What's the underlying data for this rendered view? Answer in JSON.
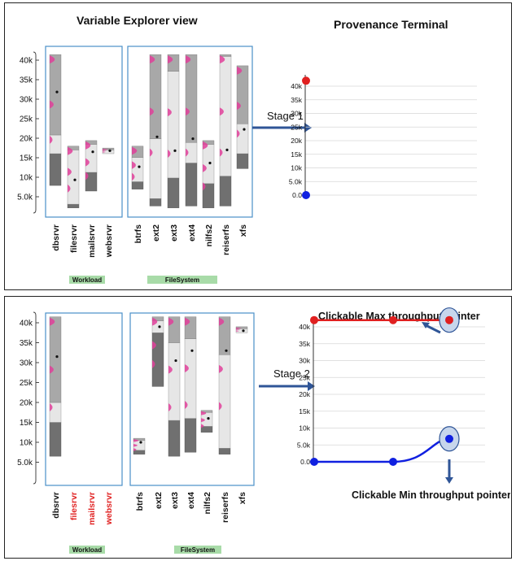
{
  "panel1": {
    "title_left": "Variable Explorer view",
    "title_right": "Provenance Terminal",
    "stage_label": "Stage 1",
    "y_ticks": [
      "40k",
      "35k",
      "30k",
      "25k",
      "20k",
      "15k",
      "10k",
      "5.0k"
    ],
    "workload_label": "Workload",
    "filesystem_label": "FileSystem",
    "workload_items": [
      "dbsrvr",
      "filesrvr",
      "mailsrvr",
      "websrvr"
    ],
    "filesystem_items": [
      "btrfs",
      "ext2",
      "ext3",
      "ext4",
      "nilfs2",
      "reiserfs",
      "xfs"
    ],
    "terminal_ticks": [
      "40k",
      "35k",
      "30k",
      "25k",
      "20k",
      "15k",
      "10k",
      "5.0k",
      "0.0"
    ]
  },
  "panel2": {
    "stage_label": "Stage 2",
    "y_ticks": [
      "40k",
      "35k",
      "30k",
      "25k",
      "20k",
      "15k",
      "10k",
      "5.0k"
    ],
    "workload_label": "Workload",
    "filesystem_label": "FileSystem",
    "workload_items": [
      "dbsrvr",
      "filesrvr",
      "mailsrvr",
      "websrvr"
    ],
    "filesystem_items": [
      "btrfs",
      "ext2",
      "ext3",
      "ext4",
      "nilfs2",
      "reiserfs",
      "xfs"
    ],
    "terminal_ticks": [
      "40k",
      "35k",
      "30k",
      "25k",
      "20k",
      "15k",
      "10k",
      "5.0k",
      "0.0"
    ],
    "max_callout": "Clickable Max throughput pointer",
    "min_callout": "Clickable Min throughput pointer"
  },
  "colors": {
    "dark": "#707070",
    "mid": "#a8a8a8",
    "light": "#e6e6e6",
    "pink": "#e0409a",
    "box_border": "#4a90c8",
    "group_bg": "#a8dba8",
    "max_red": "#e02020",
    "min_blue": "#1020e0",
    "arrow": "#2f5597",
    "deselected": "#e02020"
  },
  "chart_data": [
    {
      "type": "box",
      "title": "Variable Explorer view",
      "stage": "Stage 1",
      "ylim": [
        0,
        42000
      ],
      "yticks": [
        5000,
        10000,
        15000,
        20000,
        25000,
        30000,
        35000,
        40000
      ],
      "groups": [
        {
          "name": "Workload",
          "series": [
            {
              "name": "dbsrvr",
              "min": 6500,
              "q1": 15000,
              "q3": 20000,
              "max": 41500,
              "mean": 31500,
              "selected": true
            },
            {
              "name": "filesrvr",
              "min": 500,
              "q1": 1500,
              "q3": 16000,
              "max": 17000,
              "mean": 8000,
              "selected": true
            },
            {
              "name": "mailsrvr",
              "min": 5000,
              "q1": 10000,
              "q3": 17500,
              "max": 18500,
              "mean": 15500,
              "selected": true
            },
            {
              "name": "websrvr",
              "min": 15000,
              "q1": 15000,
              "q3": 16000,
              "max": 16500,
              "mean": 15800,
              "selected": true
            }
          ]
        },
        {
          "name": "FileSystem",
          "series": [
            {
              "name": "btrfs",
              "min": 5500,
              "q1": 7500,
              "q3": 14000,
              "max": 17000,
              "mean": 11500,
              "selected": true
            },
            {
              "name": "ext2",
              "min": 1000,
              "q1": 3000,
              "q3": 19000,
              "max": 41500,
              "mean": 19500,
              "selected": true
            },
            {
              "name": "ext3",
              "min": 500,
              "q1": 8500,
              "q3": 37000,
              "max": 41500,
              "mean": 15800,
              "selected": true
            },
            {
              "name": "ext4",
              "min": 1000,
              "q1": 12500,
              "q3": 18000,
              "max": 41500,
              "mean": 19000,
              "selected": true
            },
            {
              "name": "nilfs2",
              "min": 500,
              "q1": 7000,
              "q3": 17500,
              "max": 18500,
              "mean": 12500,
              "selected": true
            },
            {
              "name": "reiserfs",
              "min": 1000,
              "q1": 9000,
              "q3": 41000,
              "max": 41500,
              "mean": 16000,
              "selected": true
            },
            {
              "name": "xfs",
              "min": 11000,
              "q1": 15000,
              "q3": 23000,
              "max": 38500,
              "mean": 21500,
              "selected": true
            }
          ]
        }
      ]
    },
    {
      "type": "line",
      "title": "Provenance Terminal",
      "stage": "Stage 1",
      "ylim": [
        0,
        40000
      ],
      "yticks": [
        0,
        5000,
        10000,
        15000,
        20000,
        25000,
        30000,
        35000,
        40000
      ],
      "series": [
        {
          "name": "max",
          "values": [
            42000
          ]
        },
        {
          "name": "min",
          "values": [
            0
          ]
        }
      ]
    },
    {
      "type": "box",
      "stage": "Stage 2",
      "ylim": [
        0,
        42000
      ],
      "yticks": [
        5000,
        10000,
        15000,
        20000,
        25000,
        30000,
        35000,
        40000
      ],
      "groups": [
        {
          "name": "Workload",
          "series": [
            {
              "name": "dbsrvr",
              "min": 6500,
              "q1": 15000,
              "q3": 20000,
              "max": 41500,
              "mean": 31500,
              "selected": true
            },
            {
              "name": "filesrvr",
              "selected": false
            },
            {
              "name": "mailsrvr",
              "selected": false
            },
            {
              "name": "websrvr",
              "selected": false
            }
          ]
        },
        {
          "name": "FileSystem",
          "series": [
            {
              "name": "btrfs",
              "min": 7000,
              "q1": 8000,
              "q3": 10500,
              "max": 11000,
              "mean": 10000,
              "selected": true
            },
            {
              "name": "ext2",
              "min": 24000,
              "q1": 37500,
              "q3": 40500,
              "max": 41500,
              "mean": 39000,
              "selected": true
            },
            {
              "name": "ext3",
              "min": 6500,
              "q1": 15500,
              "q3": 35000,
              "max": 41500,
              "mean": 30500,
              "selected": true
            },
            {
              "name": "ext4",
              "min": 7500,
              "q1": 16000,
              "q3": 36000,
              "max": 41500,
              "mean": 33000,
              "selected": true
            },
            {
              "name": "nilfs2",
              "min": 12500,
              "q1": 14000,
              "q3": 17500,
              "max": 18000,
              "mean": 16000,
              "selected": true
            },
            {
              "name": "reiserfs",
              "min": 7000,
              "q1": 8500,
              "q3": 32000,
              "max": 41500,
              "mean": 33000,
              "selected": true
            },
            {
              "name": "xfs",
              "min": 37500,
              "q1": 37500,
              "q3": 38500,
              "max": 39000,
              "mean": 38000,
              "selected": true
            }
          ]
        }
      ]
    },
    {
      "type": "line",
      "stage": "Stage 2",
      "ylim": [
        0,
        40000
      ],
      "yticks": [
        0,
        5000,
        10000,
        15000,
        20000,
        25000,
        30000,
        35000,
        40000
      ],
      "series": [
        {
          "name": "max",
          "values": [
            42000,
            42000,
            42000
          ]
        },
        {
          "name": "min",
          "values": [
            0,
            0,
            6800
          ]
        }
      ]
    }
  ]
}
